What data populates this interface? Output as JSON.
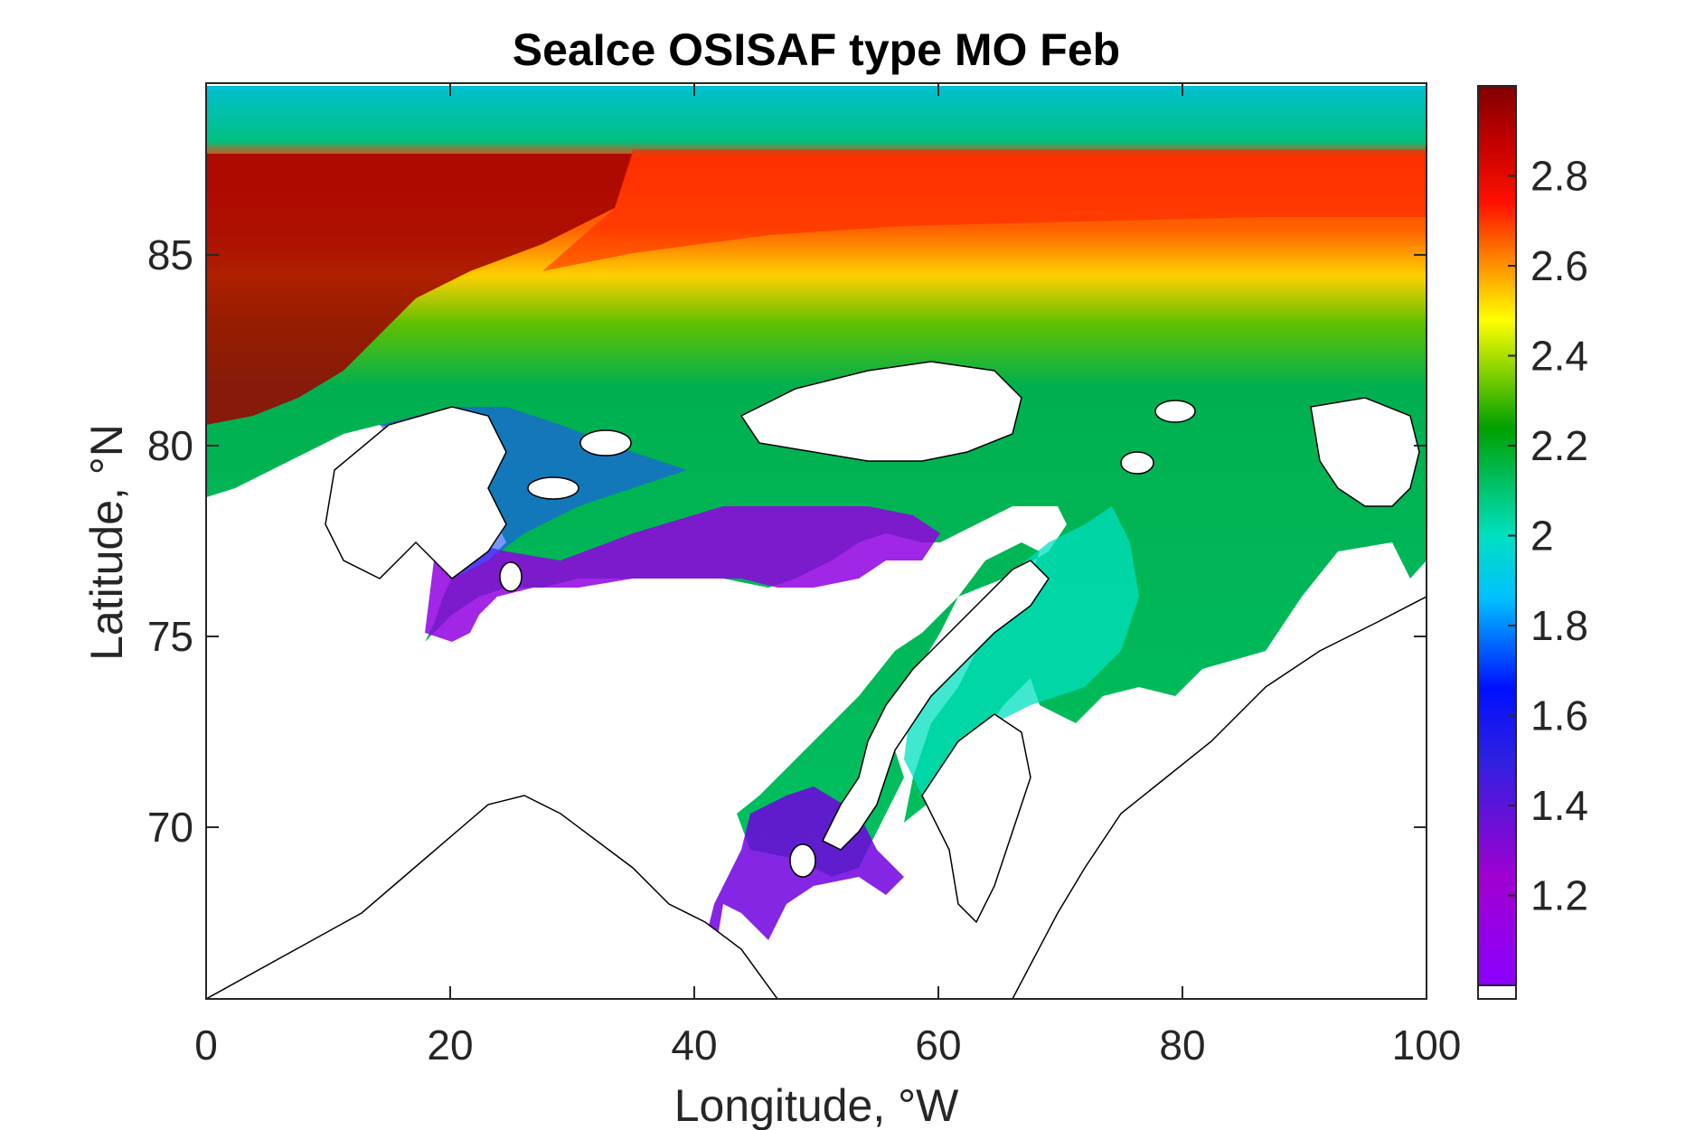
{
  "chart_data": {
    "type": "heatmap",
    "title": "SeaIce OSISAF type MO Feb",
    "xlabel": "Longitude, °W",
    "ylabel": "Latitude, °N",
    "xlim": [
      0,
      100
    ],
    "ylim": [
      65.5,
      89.5
    ],
    "xticks": [
      "0",
      "20",
      "40",
      "60",
      "80",
      "100"
    ],
    "yticks": [
      "70",
      "75",
      "80",
      "85"
    ],
    "colorbar": {
      "range": [
        1.0,
        3.0
      ],
      "ticks": [
        "1.2",
        "1.4",
        "1.6",
        "1.8",
        "2",
        "2.2",
        "2.4",
        "2.6",
        "2.8"
      ],
      "colormap": "jet-like (purple - blue - cyan - green - yellow - red - dark red)"
    },
    "grid": false,
    "regions": [
      {
        "region": "north edge band, lat > 88",
        "value": 1.9
      },
      {
        "region": "high Arctic near 0-15 W, lat 80-88",
        "value": 2.9
      },
      {
        "region": "lat 86-88, 20-100 W",
        "value": 2.65
      },
      {
        "region": "lat 84-86",
        "value": 2.35
      },
      {
        "region": "lat 82-84, 20-100 W",
        "value": 2.2
      },
      {
        "region": "interior basin 60-90 W, lat 75-84",
        "value": 2.05
      },
      {
        "region": "shelf 62-72 W, lat 70-75",
        "value": 1.95
      },
      {
        "region": "ice edge 20-55 W, lat 75-79",
        "value": 1.35
      },
      {
        "region": "coastal 40-55 W, lat 67-71",
        "value": 1.5
      }
    ]
  }
}
